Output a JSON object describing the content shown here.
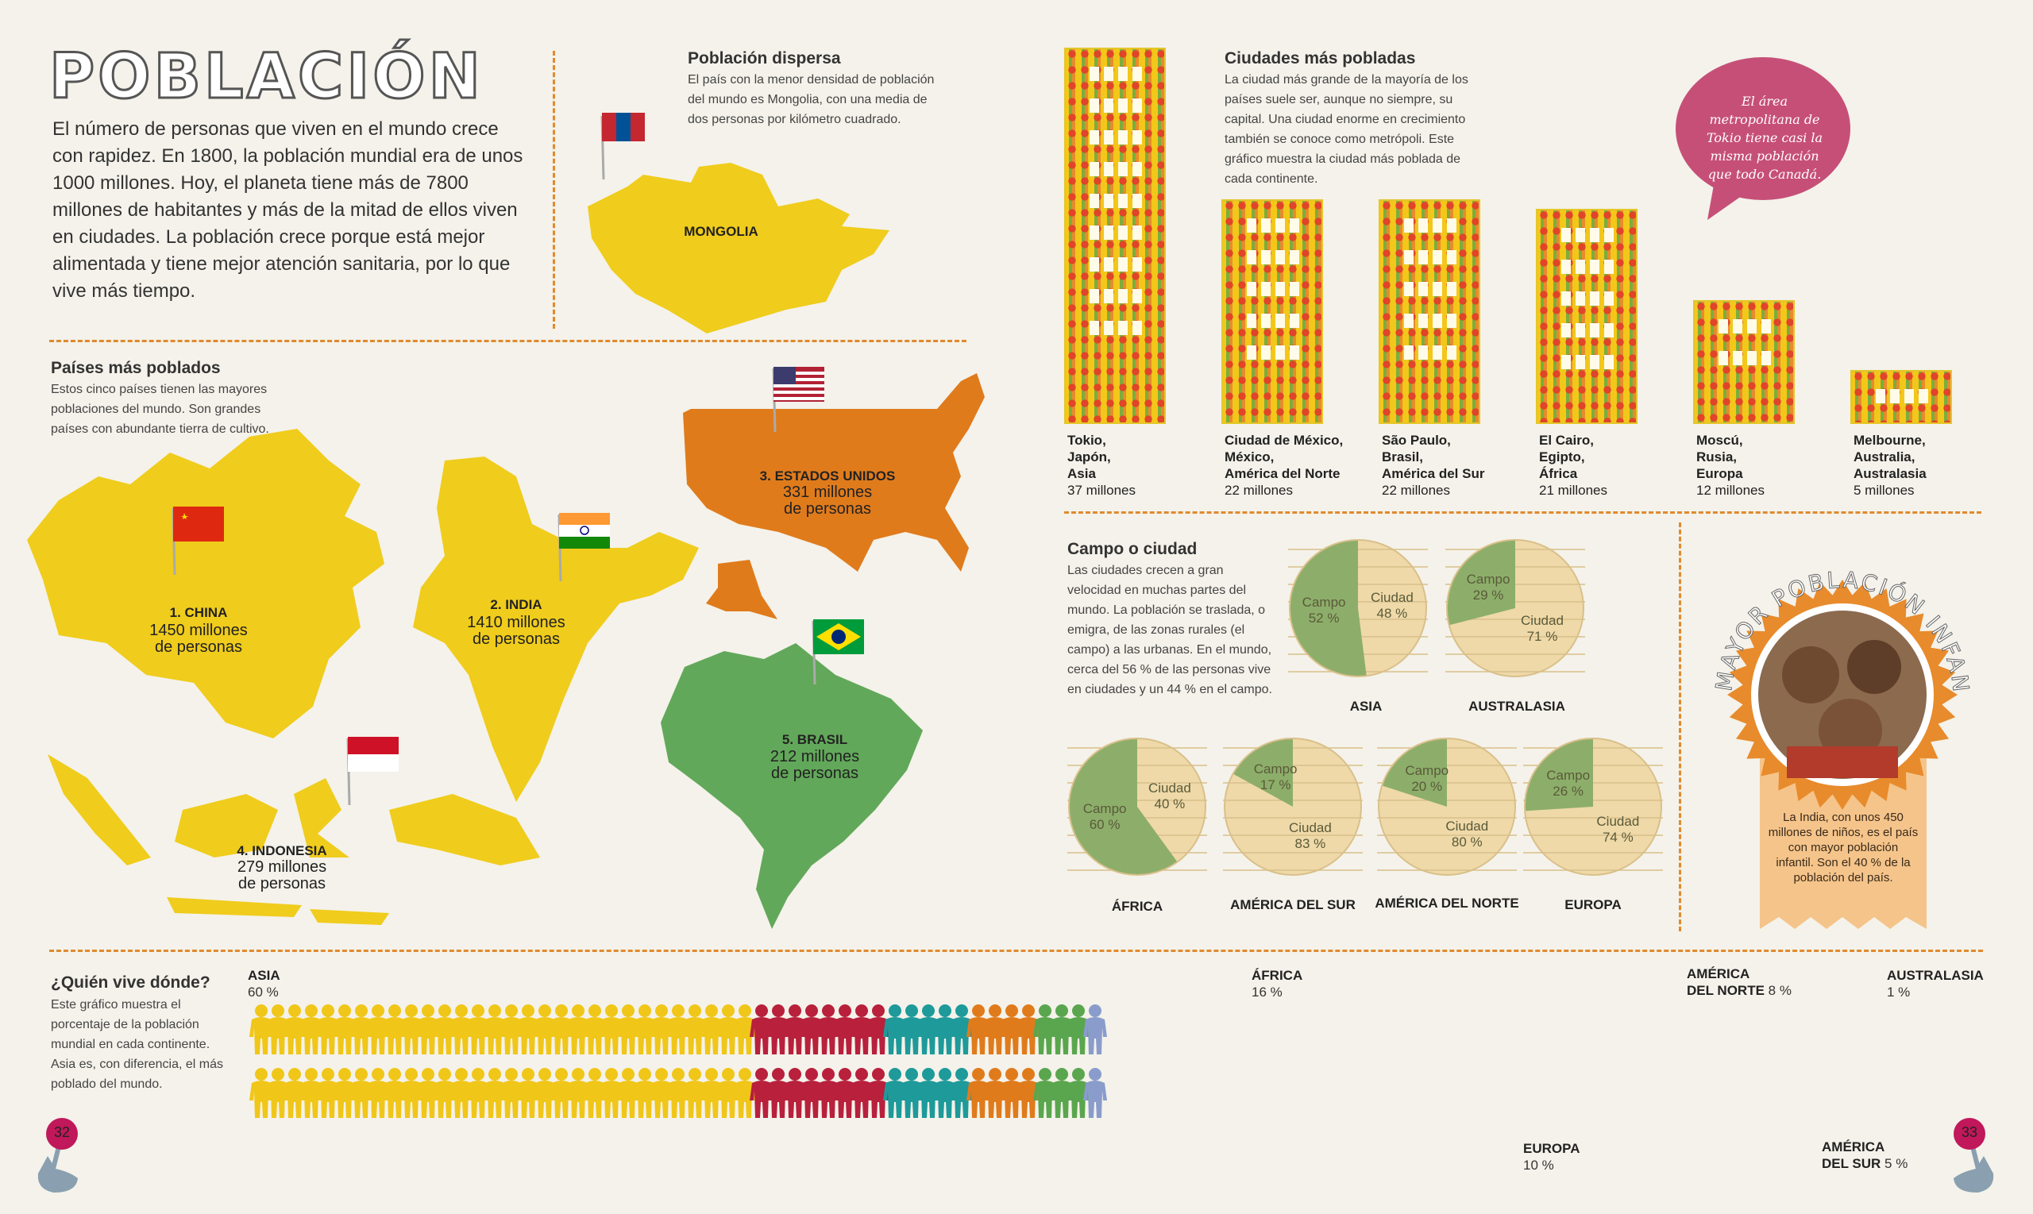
{
  "page": {
    "title": "POBLACIÓN",
    "intro": "El número de personas que viven en el mundo crece con rapidez. En 1800, la población mundial era de unos 1000 millones. Hoy, el planeta tiene más de 7800 millones de habitantes y más de la mitad de ellos viven en ciudades. La población crece porque está mejor alimentada y tiene mejor atención sanitaria, por lo que vive más tiempo.",
    "page_left": "32",
    "page_right": "33"
  },
  "dispersa": {
    "heading": "Población dispersa",
    "text": "El país con la menor densidad de población del mundo es Mongolia, con una media de dos personas por kilómetro cuadrado.",
    "map_label": "MONGOLIA"
  },
  "paises": {
    "heading": "Países más poblados",
    "text": "Estos cinco países tienen las mayores poblaciones del mundo. Son grandes países con abundante tierra de cultivo.",
    "countries": [
      {
        "rank_name": "1. CHINA",
        "value": "1450 millones",
        "unit": "de personas",
        "color": "#f0cc1c"
      },
      {
        "rank_name": "2. INDIA",
        "value": "1410 millones",
        "unit": "de personas",
        "color": "#f0cc1c"
      },
      {
        "rank_name": "3. ESTADOS UNIDOS",
        "value": "331 millones",
        "unit": "de personas",
        "color": "#e07b1c"
      },
      {
        "rank_name": "4. INDONESIA",
        "value": "279 millones",
        "unit": "de personas",
        "color": "#f0cc1c"
      },
      {
        "rank_name": "5. BRASIL",
        "value": "212 millones",
        "unit": "de personas",
        "color": "#62a85a"
      }
    ]
  },
  "ciudades": {
    "heading": "Ciudades más pobladas",
    "text": "La ciudad más grande de la mayoría de los países suele ser, aunque no siempre, su capital. Una ciudad enorme en crecimiento también se conoce como metrópoli. Este gráfico muestra la ciudad más poblada de cada continente.",
    "bubble": "El área metropolitana de Tokio tiene casi la misma población que todo Canadá.",
    "items": [
      {
        "l1": "Tokio,",
        "l2": "Japón,",
        "l3": "Asia",
        "value": "37 millones",
        "millions": 37
      },
      {
        "l1": "Ciudad de México,",
        "l2": "México,",
        "l3": "América del Norte",
        "value": "22 millones",
        "millions": 22
      },
      {
        "l1": "São Paulo,",
        "l2": "Brasil,",
        "l3": "América del Sur",
        "value": "22 millones",
        "millions": 22
      },
      {
        "l1": "El Cairo,",
        "l2": "Egipto,",
        "l3": "África",
        "value": "21 millones",
        "millions": 21
      },
      {
        "l1": "Moscú,",
        "l2": "Rusia,",
        "l3": "Europa",
        "value": "12 millones",
        "millions": 12
      },
      {
        "l1": "Melbourne,",
        "l2": "Australia,",
        "l3": "Australasia",
        "value": "5 millones",
        "millions": 5
      }
    ]
  },
  "campo": {
    "heading": "Campo o ciudad",
    "text": "Las ciudades crecen a gran velocidad en muchas partes del mundo. La población se traslada, o emigra, de las zonas rurales (el campo) a las urbanas. En el mundo, cerca del 56 % de las personas vive en ciudades y un 44 % en el campo.",
    "pies": [
      {
        "name": "ASIA",
        "campo_label": "Campo",
        "campo_pct": 52,
        "campo_txt": "52 %",
        "ciudad_label": "Ciudad",
        "ciudad_txt": "48 %"
      },
      {
        "name": "AUSTRALASIA",
        "campo_label": "Campo",
        "campo_pct": 29,
        "campo_txt": "29 %",
        "ciudad_label": "Ciudad",
        "ciudad_txt": "71 %"
      },
      {
        "name": "ÁFRICA",
        "campo_label": "Campo",
        "campo_pct": 60,
        "campo_txt": "60 %",
        "ciudad_label": "Ciudad",
        "ciudad_txt": "40 %"
      },
      {
        "name": "AMÉRICA DEL SUR",
        "campo_label": "Campo",
        "campo_pct": 17,
        "campo_txt": "17 %",
        "ciudad_label": "Ciudad",
        "ciudad_txt": "83 %"
      },
      {
        "name": "AMÉRICA DEL NORTE",
        "campo_label": "Campo",
        "campo_pct": 20,
        "campo_txt": "20 %",
        "ciudad_label": "Ciudad",
        "ciudad_txt": "80 %"
      },
      {
        "name": "EUROPA",
        "campo_label": "Campo",
        "campo_pct": 26,
        "campo_txt": "26 %",
        "ciudad_label": "Ciudad",
        "ciudad_txt": "74 %"
      }
    ]
  },
  "infantil": {
    "arc_title": "LA MAYOR POBLACIÓN INFANTIL",
    "text": "La India, con unos 450 millones de niños, es el país con mayor población infantil. Son el 40 % de la población del país."
  },
  "quien": {
    "heading": "¿Quién vive dónde?",
    "text": "Este gráfico muestra el porcentaje de la población mundial en cada continente. Asia es, con diferencia, el más poblado del mundo.",
    "continents": [
      {
        "name": "ASIA",
        "pct": "60 %",
        "count": 60,
        "color": "#f0c619"
      },
      {
        "name": "ÁFRICA",
        "pct": "16 %",
        "count": 16,
        "color": "#b8203c"
      },
      {
        "name": "EUROPA",
        "pct": "10 %",
        "count": 10,
        "color": "#1e9a9a"
      },
      {
        "name": "AMÉRICA DEL NORTE",
        "pct": "8 %",
        "count": 8,
        "color": "#e07b1c"
      },
      {
        "name": "AMÉRICA DEL SUR",
        "pct": "5 %",
        "count": 5,
        "color": "#5aa64e"
      },
      {
        "name": "AUSTRALASIA",
        "pct": "1 %",
        "count": 1,
        "color": "#8a9ccc"
      }
    ],
    "label_asia_1": "ASIA",
    "label_africa_1": "ÁFRICA",
    "label_na_1": "AMÉRICA",
    "label_na_2": "DEL NORTE",
    "label_aus": "AUSTRALASIA",
    "label_eu": "EUROPA",
    "label_sa_1": "AMÉRICA",
    "label_sa_2": "DEL SUR"
  },
  "colors": {
    "accent": "#e08a2e",
    "bubble": "#c64f78"
  }
}
